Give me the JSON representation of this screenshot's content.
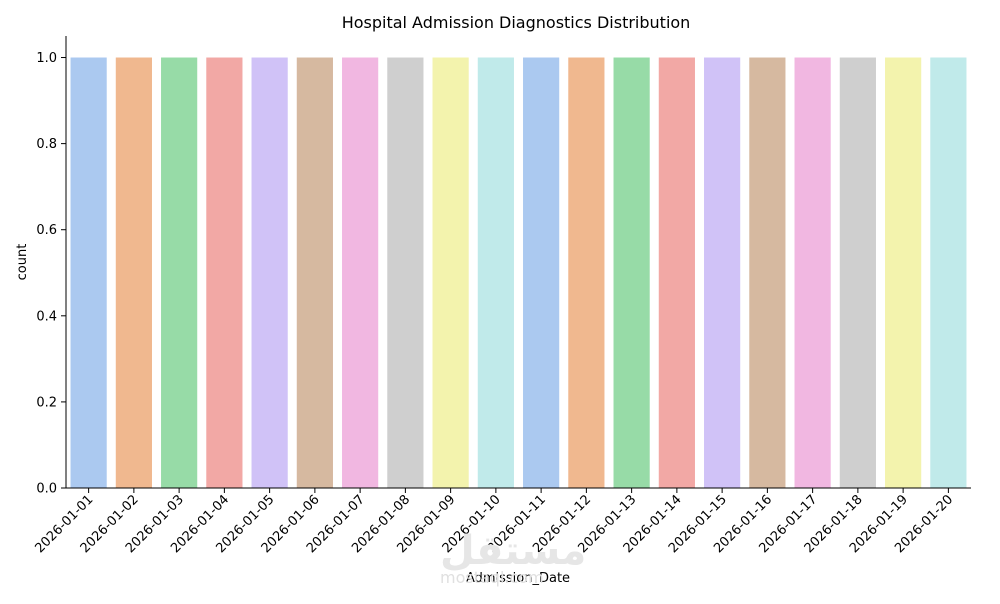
{
  "chart_data": {
    "type": "bar",
    "title": "Hospital Admission Diagnostics Distribution",
    "xlabel": "Admission_Date",
    "ylabel": "count",
    "categories": [
      "2026-01-01",
      "2026-01-02",
      "2026-01-03",
      "2026-01-04",
      "2026-01-05",
      "2026-01-06",
      "2026-01-07",
      "2026-01-08",
      "2026-01-09",
      "2026-01-10",
      "2026-01-11",
      "2026-01-12",
      "2026-01-13",
      "2026-01-14",
      "2026-01-15",
      "2026-01-16",
      "2026-01-17",
      "2026-01-18",
      "2026-01-19",
      "2026-01-20"
    ],
    "values": [
      1,
      1,
      1,
      1,
      1,
      1,
      1,
      1,
      1,
      1,
      1,
      1,
      1,
      1,
      1,
      1,
      1,
      1,
      1,
      1
    ],
    "ylim": [
      0,
      1.05
    ],
    "yticks": [
      0.0,
      0.2,
      0.4,
      0.6,
      0.8,
      1.0
    ],
    "ytick_labels": [
      "0.0",
      "0.2",
      "0.4",
      "0.6",
      "0.8",
      "1.0"
    ],
    "grid": false,
    "legend": "none",
    "colors": [
      "#abc9f0",
      "#f0b88f",
      "#97dba7",
      "#f2a8a5",
      "#d0c2f7",
      "#d6b9a0",
      "#f1b7e1",
      "#cfcfcf",
      "#f3f3ad",
      "#c0eaea"
    ]
  },
  "watermark": {
    "text": "مستقل",
    "subtext": "mostaql.com"
  }
}
